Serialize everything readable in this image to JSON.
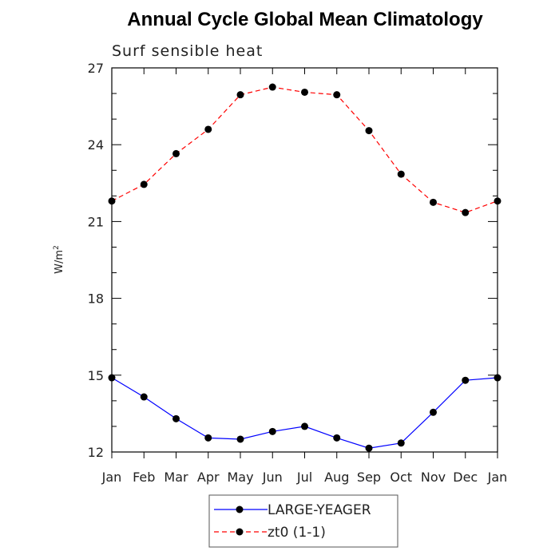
{
  "chart_data": {
    "type": "line",
    "title": "Annual Cycle Global Mean Climatology",
    "subtitle": "Surf sensible heat",
    "xlabel": "",
    "ylabel": "W/m",
    "ylabel_superscript": "2",
    "categories": [
      "Jan",
      "Feb",
      "Mar",
      "Apr",
      "May",
      "Jun",
      "Jul",
      "Aug",
      "Sep",
      "Oct",
      "Nov",
      "Dec",
      "Jan"
    ],
    "ylim": [
      12,
      27
    ],
    "yticks": [
      12,
      15,
      18,
      21,
      24,
      27
    ],
    "ytick_labels": [
      "12",
      "15",
      "18",
      "21",
      "24",
      "27"
    ],
    "grid": false,
    "legend_position": "bottom-center",
    "series": [
      {
        "name": "LARGE-YEAGER",
        "color": "#0000ff",
        "dash": "solid",
        "marker": "circle",
        "values": [
          14.9,
          14.15,
          13.3,
          12.55,
          12.5,
          12.8,
          13.0,
          12.55,
          12.15,
          12.35,
          13.55,
          14.8,
          14.9
        ]
      },
      {
        "name": "zt0 (1-1)",
        "color": "#ff0000",
        "dash": "dashed",
        "marker": "circle",
        "values": [
          21.8,
          22.45,
          23.65,
          24.6,
          25.95,
          26.25,
          26.05,
          25.95,
          24.55,
          22.85,
          21.75,
          21.35,
          21.8
        ]
      }
    ]
  }
}
